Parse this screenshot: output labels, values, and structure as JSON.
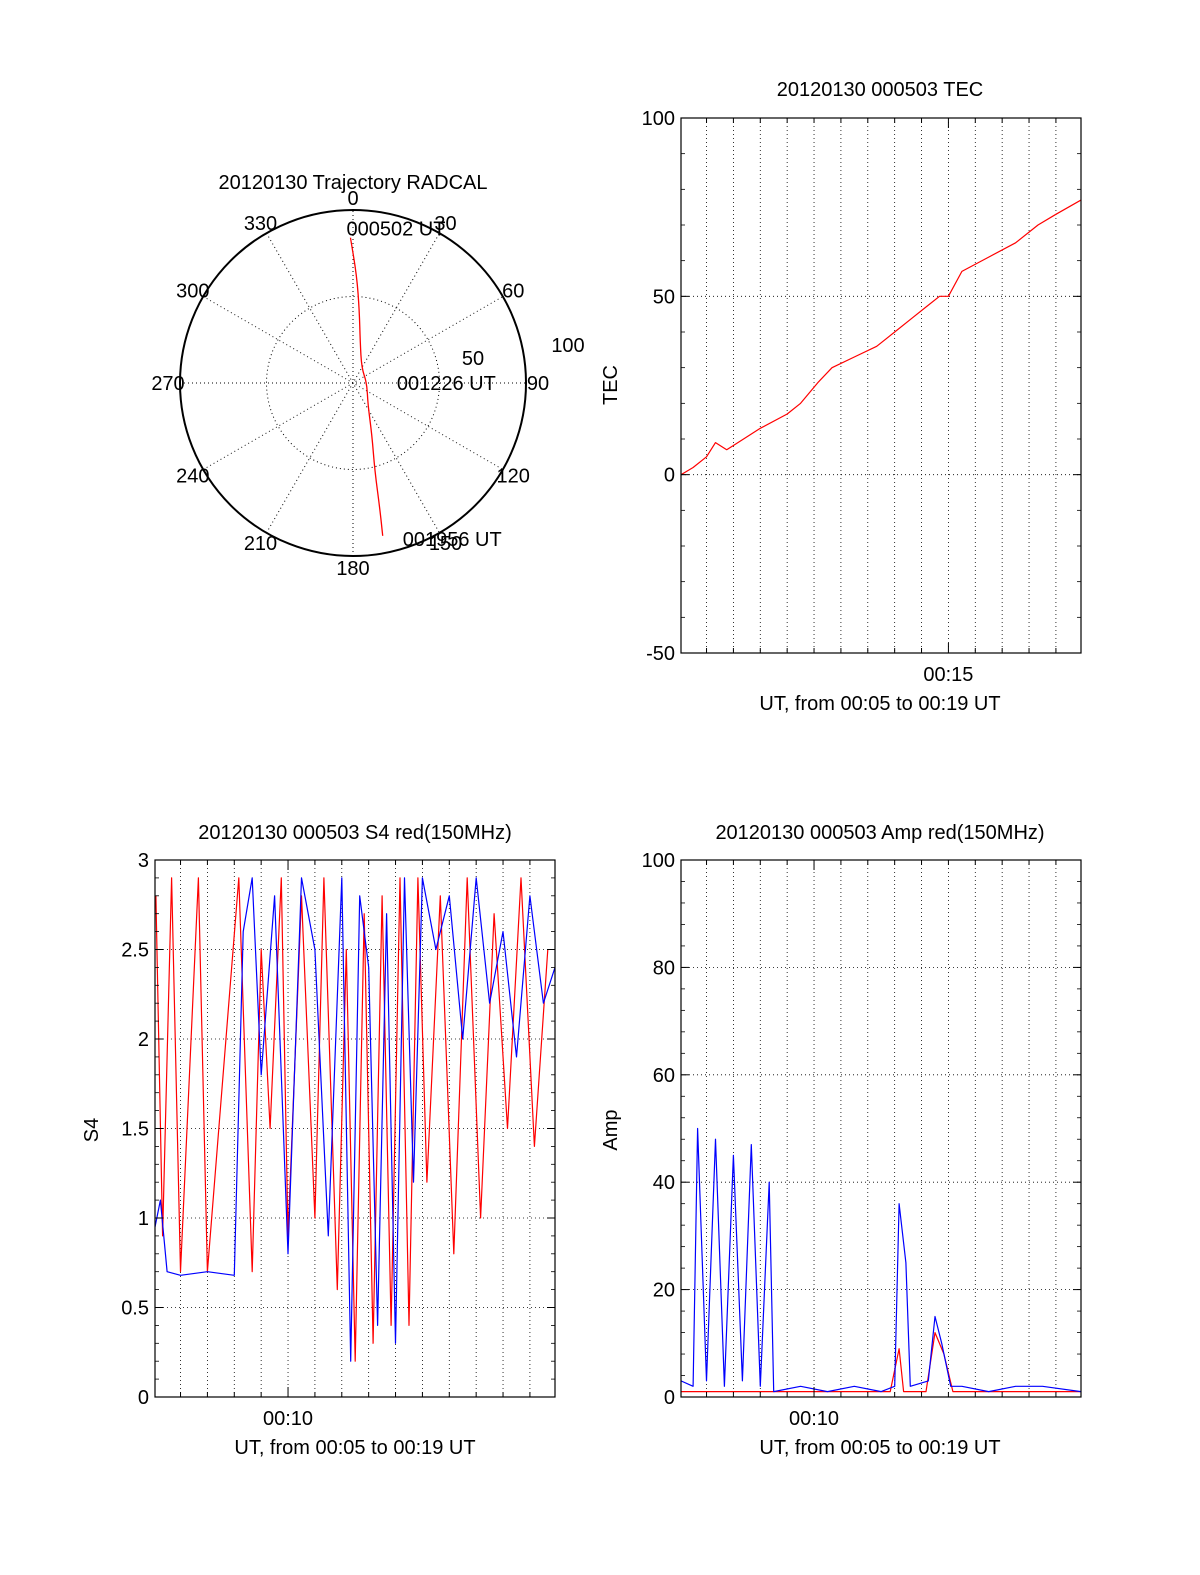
{
  "colors": {
    "red_series": "#ff0000",
    "blue_series": "#0000ff",
    "axis": "#000000",
    "grid": "#000000"
  },
  "chart_data": [
    {
      "type": "polar",
      "title": "20120130 Trajectory RADCAL",
      "azimuth_ticks": [
        "0",
        "30",
        "60",
        "90",
        "120",
        "150",
        "180",
        "210",
        "240",
        "270",
        "300",
        "330"
      ],
      "radial_ticks": [
        "50",
        "100"
      ],
      "rlim": [
        0,
        100
      ],
      "grid": true,
      "series": [
        {
          "color": "#ff0000",
          "points": [
            {
              "az": -1,
              "r": 84
            },
            {
              "az": 2,
              "r": 62
            },
            {
              "az": 5,
              "r": 42
            },
            {
              "az": 10,
              "r": 24
            },
            {
              "az": 30,
              "r": 10
            },
            {
              "az": 90,
              "r": 8
            },
            {
              "az": 145,
              "r": 15
            },
            {
              "az": 160,
              "r": 32
            },
            {
              "az": 166,
              "r": 52
            },
            {
              "az": 168,
              "r": 75
            },
            {
              "az": 169,
              "r": 90
            }
          ]
        }
      ],
      "annotations": [
        {
          "text": "000502 UT",
          "az": -1,
          "r": 84
        },
        {
          "text": "001226 UT",
          "az": 90,
          "r": 8
        },
        {
          "text": "001956 UT",
          "az": 169,
          "r": 90
        }
      ]
    },
    {
      "type": "line",
      "title": "20120130 000503 TEC",
      "xlabel": "UT, from 00:05 to 00:19 UT",
      "ylabel": "TEC",
      "xlim": [
        "00:05:03",
        "00:19:56"
      ],
      "ylim": [
        -50,
        100
      ],
      "yticks": [
        "100",
        "50",
        "0",
        "-50"
      ],
      "xticks": [
        "00:15"
      ],
      "grid": true,
      "series": [
        {
          "color": "#ff0000",
          "x": [
            "00:05:03",
            "00:05:30",
            "00:06:00",
            "00:06:20",
            "00:06:45",
            "00:07:10",
            "00:08:00",
            "00:09:00",
            "00:09:30",
            "00:10:10",
            "00:10:40",
            "00:11:30",
            "00:12:20",
            "00:13:00",
            "00:13:40",
            "00:14:10",
            "00:14:40",
            "00:15:00",
            "00:15:30",
            "00:16:30",
            "00:17:30",
            "00:18:20",
            "00:19:00",
            "00:19:56"
          ],
          "values": [
            0,
            2,
            5,
            9,
            7,
            9,
            13,
            17,
            20,
            26,
            30,
            33,
            36,
            40,
            44,
            47,
            50,
            50,
            57,
            61,
            65,
            70,
            73,
            77
          ]
        }
      ]
    },
    {
      "type": "line",
      "title": "20120130 000503 S4 red(150MHz)",
      "xlabel": "UT, from 00:05 to 00:19 UT",
      "ylabel": "S4",
      "xlim": [
        "00:05:03",
        "00:19:56"
      ],
      "ylim": [
        0,
        3
      ],
      "yticks": [
        "0",
        "0.5",
        "1",
        "1.5",
        "2",
        "2.5",
        "3"
      ],
      "xticks": [
        "00:10"
      ],
      "grid": true,
      "series": [
        {
          "color": "#ff0000",
          "x": [
            "00:05:05",
            "00:05:20",
            "00:05:40",
            "00:06:00",
            "00:06:40",
            "00:07:00",
            "00:08:10",
            "00:08:40",
            "00:09:00",
            "00:09:20",
            "00:09:45",
            "00:10:00",
            "00:10:30",
            "00:11:00",
            "00:11:20",
            "00:11:50",
            "00:12:10",
            "00:12:30",
            "00:12:50",
            "00:13:10",
            "00:13:30",
            "00:13:50",
            "00:14:10",
            "00:14:30",
            "00:14:50",
            "00:15:10",
            "00:15:40",
            "00:16:10",
            "00:16:40",
            "00:17:10",
            "00:17:40",
            "00:18:10",
            "00:18:40",
            "00:19:10",
            "00:19:40"
          ],
          "values": [
            2.8,
            0.9,
            2.9,
            0.7,
            2.9,
            0.7,
            2.9,
            0.7,
            2.5,
            1.5,
            2.9,
            0.9,
            2.8,
            1.0,
            2.9,
            0.6,
            2.5,
            0.2,
            2.7,
            0.3,
            2.8,
            0.4,
            2.9,
            0.4,
            2.9,
            1.2,
            2.8,
            0.8,
            2.9,
            1.0,
            2.7,
            1.5,
            2.9,
            1.4,
            2.5
          ]
        },
        {
          "color": "#0000ff",
          "x": [
            "00:05:03",
            "00:05:15",
            "00:05:30",
            "00:06:00",
            "00:07:00",
            "00:08:00",
            "00:08:20",
            "00:08:40",
            "00:09:00",
            "00:09:30",
            "00:10:00",
            "00:10:30",
            "00:11:00",
            "00:11:30",
            "00:12:00",
            "00:12:20",
            "00:12:40",
            "00:13:00",
            "00:13:20",
            "00:13:40",
            "00:14:00",
            "00:14:20",
            "00:14:40",
            "00:15:00",
            "00:15:30",
            "00:16:00",
            "00:16:30",
            "00:17:00",
            "00:17:30",
            "00:18:00",
            "00:18:30",
            "00:19:00",
            "00:19:30",
            "00:19:56"
          ],
          "values": [
            0.95,
            1.1,
            0.7,
            0.68,
            0.7,
            0.68,
            2.6,
            2.9,
            1.8,
            2.8,
            0.8,
            2.9,
            2.5,
            0.9,
            2.9,
            0.2,
            2.8,
            2.4,
            0.4,
            2.7,
            0.3,
            2.9,
            1.2,
            2.9,
            2.5,
            2.8,
            2.0,
            2.9,
            2.2,
            2.6,
            1.9,
            2.8,
            2.2,
            2.4
          ]
        }
      ]
    },
    {
      "type": "line",
      "title": "20120130 000503 Amp red(150MHz)",
      "xlabel": "UT, from 00:05 to 00:19 UT",
      "ylabel": "Amp",
      "xlim": [
        "00:05:03",
        "00:19:56"
      ],
      "ylim": [
        0,
        100
      ],
      "yticks": [
        "0",
        "20",
        "40",
        "60",
        "80",
        "100"
      ],
      "xticks": [
        "00:10"
      ],
      "grid": true,
      "series": [
        {
          "color": "#ff0000",
          "x": [
            "00:05:03",
            "00:06:00",
            "00:07:00",
            "00:08:20",
            "00:12:50",
            "00:13:10",
            "00:13:20",
            "00:14:10",
            "00:14:30",
            "00:14:50",
            "00:15:10",
            "00:19:56"
          ],
          "values": [
            1,
            1,
            1,
            1,
            1,
            9,
            1,
            1,
            12,
            8,
            1,
            1
          ]
        },
        {
          "color": "#0000ff",
          "x": [
            "00:05:03",
            "00:05:30",
            "00:05:40",
            "00:06:00",
            "00:06:20",
            "00:06:40",
            "00:07:00",
            "00:07:20",
            "00:07:40",
            "00:08:00",
            "00:08:20",
            "00:08:30",
            "00:09:30",
            "00:10:30",
            "00:11:30",
            "00:12:30",
            "00:13:00",
            "00:13:10",
            "00:13:25",
            "00:13:35",
            "00:14:15",
            "00:14:30",
            "00:14:45",
            "00:15:05",
            "00:15:30",
            "00:16:30",
            "00:17:30",
            "00:18:30",
            "00:19:56"
          ],
          "values": [
            3,
            2,
            50,
            3,
            48,
            2,
            45,
            3,
            47,
            2,
            40,
            1,
            2,
            1,
            2,
            1,
            2,
            36,
            25,
            2,
            3,
            15,
            10,
            2,
            2,
            1,
            2,
            2,
            1
          ]
        }
      ]
    }
  ]
}
